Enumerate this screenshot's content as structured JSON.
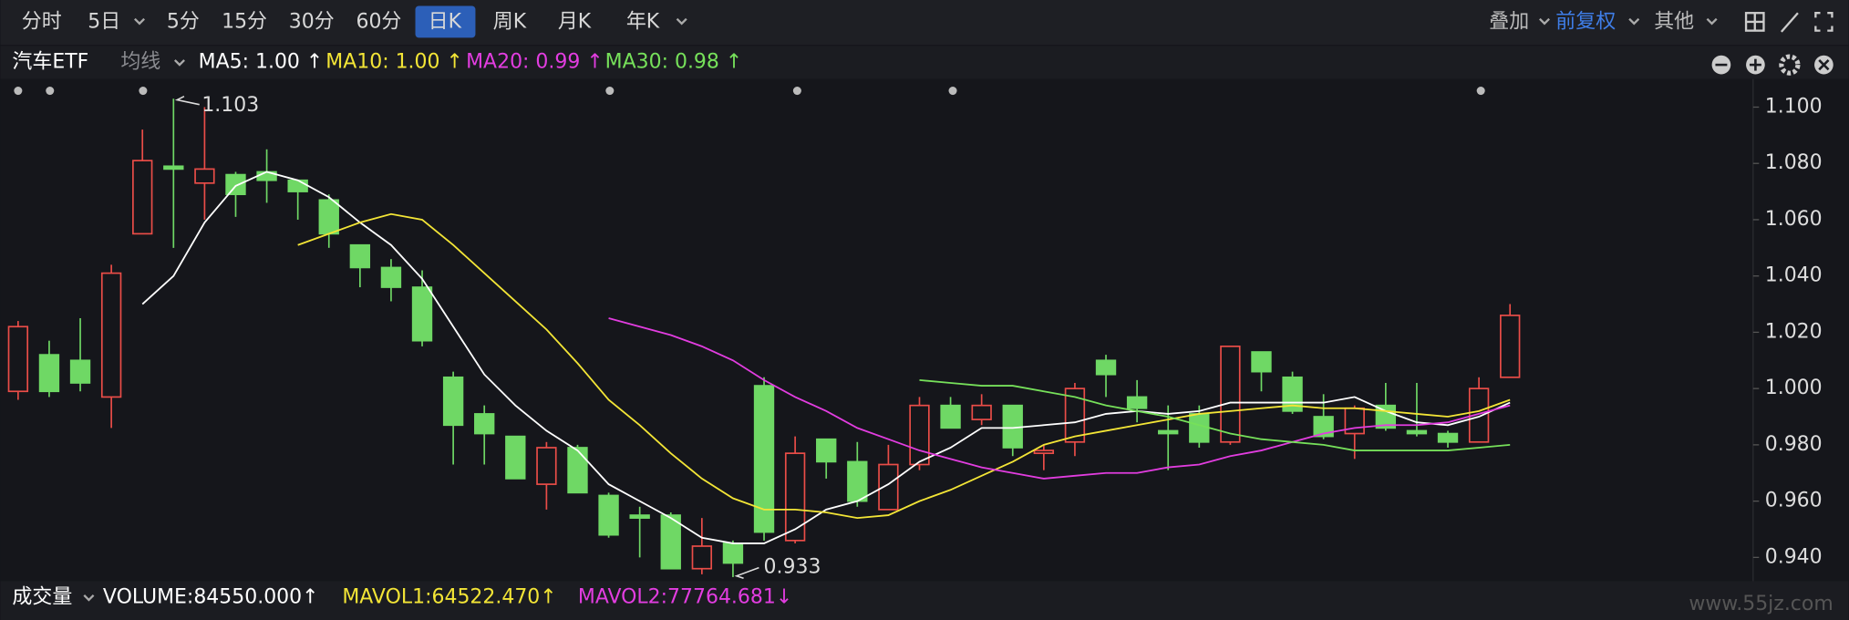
{
  "toolbar": {
    "tabs": [
      "分时",
      "5日",
      "5分",
      "15分",
      "30分",
      "60分",
      "日K",
      "周K",
      "月K",
      "年K"
    ],
    "right": [
      "叠加",
      "前复权",
      "其他"
    ]
  },
  "chart_data": {
    "type": "candlestick",
    "title": "汽车ETF",
    "indicator_menu": "均线",
    "up_color": "#ea4d48",
    "down_color": "#6fd865",
    "open": [
      0.999,
      1.012,
      1.01,
      0.997,
      1.055,
      1.079,
      1.073,
      1.076,
      1.077,
      1.074,
      1.067,
      1.051,
      1.043,
      1.036,
      1.004,
      0.991,
      0.983,
      0.966,
      0.979,
      0.962,
      0.955,
      0.955,
      0.936,
      0.945,
      1.001,
      0.946,
      0.982,
      0.974,
      0.957,
      0.973,
      0.994,
      0.989,
      0.994,
      0.977,
      0.981,
      1.01,
      0.997,
      0.985,
      0.991,
      0.981,
      1.013,
      1.004,
      0.99,
      0.984,
      0.994,
      0.985,
      0.984,
      0.981,
      1.004
    ],
    "high": [
      1.024,
      1.017,
      1.025,
      1.044,
      1.092,
      1.103,
      1.1,
      1.077,
      1.085,
      1.074,
      1.069,
      1.051,
      1.046,
      1.042,
      1.006,
      0.994,
      0.983,
      0.981,
      0.98,
      0.963,
      0.958,
      0.956,
      0.954,
      0.946,
      1.004,
      0.983,
      0.982,
      0.981,
      0.98,
      0.997,
      0.997,
      0.998,
      0.994,
      0.98,
      1.002,
      1.012,
      1.003,
      0.994,
      0.994,
      1.015,
      1.013,
      1.006,
      0.998,
      0.994,
      1.002,
      1.002,
      0.985,
      1.004,
      1.03
    ],
    "low": [
      0.996,
      0.997,
      0.999,
      0.986,
      1.055,
      1.05,
      1.06,
      1.061,
      1.066,
      1.06,
      1.05,
      1.036,
      1.031,
      1.015,
      0.973,
      0.973,
      0.968,
      0.957,
      0.963,
      0.947,
      0.94,
      0.936,
      0.934,
      0.933,
      0.946,
      0.945,
      0.968,
      0.958,
      0.957,
      0.971,
      0.986,
      0.987,
      0.976,
      0.971,
      0.976,
      0.997,
      0.988,
      0.971,
      0.979,
      0.98,
      0.999,
      0.991,
      0.982,
      0.975,
      0.985,
      0.983,
      0.979,
      0.981,
      1.004
    ],
    "close": [
      1.022,
      0.999,
      1.002,
      1.041,
      1.081,
      1.078,
      1.078,
      1.069,
      1.074,
      1.07,
      1.055,
      1.043,
      1.036,
      1.017,
      0.987,
      0.984,
      0.968,
      0.979,
      0.963,
      0.948,
      0.954,
      0.936,
      0.944,
      0.938,
      0.949,
      0.977,
      0.974,
      0.96,
      0.973,
      0.994,
      0.986,
      0.994,
      0.979,
      0.978,
      1.0,
      1.005,
      0.993,
      0.984,
      0.981,
      1.015,
      1.006,
      0.992,
      0.983,
      0.993,
      0.986,
      0.984,
      0.981,
      1.0,
      1.026
    ],
    "series": [
      {
        "name": "MA5: 1.00 ↑",
        "color": "#ffffff",
        "values": [
          null,
          null,
          null,
          null,
          1.03,
          1.04,
          1.059,
          1.072,
          1.077,
          1.074,
          1.068,
          1.059,
          1.051,
          1.039,
          1.022,
          1.005,
          0.994,
          0.985,
          0.978,
          0.966,
          0.96,
          0.954,
          0.947,
          0.945,
          0.945,
          0.95,
          0.957,
          0.96,
          0.966,
          0.974,
          0.979,
          0.986,
          0.986,
          0.987,
          0.988,
          0.991,
          0.992,
          0.991,
          0.992,
          0.995,
          0.995,
          0.995,
          0.995,
          0.997,
          0.992,
          0.988,
          0.987,
          0.99,
          0.995
        ]
      },
      {
        "name": "MA10: 1.00 ↑",
        "color": "#f3e536",
        "values": [
          null,
          null,
          null,
          null,
          null,
          null,
          null,
          null,
          null,
          1.051,
          1.055,
          1.059,
          1.062,
          1.06,
          1.051,
          1.041,
          1.031,
          1.021,
          1.009,
          0.996,
          0.987,
          0.977,
          0.968,
          0.961,
          0.957,
          0.957,
          0.956,
          0.954,
          0.955,
          0.96,
          0.964,
          0.969,
          0.974,
          0.98,
          0.983,
          0.985,
          0.987,
          0.989,
          0.991,
          0.992,
          0.993,
          0.994,
          0.993,
          0.993,
          0.992,
          0.991,
          0.99,
          0.992,
          0.996
        ]
      },
      {
        "name": "MA20: 0.99 ↑",
        "color": "#e23de0",
        "values": [
          null,
          null,
          null,
          null,
          null,
          null,
          null,
          null,
          null,
          null,
          null,
          null,
          null,
          null,
          null,
          null,
          null,
          null,
          null,
          1.025,
          1.022,
          1.019,
          1.015,
          1.01,
          1.003,
          0.997,
          0.992,
          0.986,
          0.982,
          0.978,
          0.975,
          0.972,
          0.97,
          0.968,
          0.969,
          0.97,
          0.97,
          0.972,
          0.973,
          0.976,
          0.978,
          0.981,
          0.984,
          0.986,
          0.987,
          0.987,
          0.988,
          0.991,
          0.994
        ]
      },
      {
        "name": "MA30: 0.98 ↑",
        "color": "#76e05a",
        "values": [
          null,
          null,
          null,
          null,
          null,
          null,
          null,
          null,
          null,
          null,
          null,
          null,
          null,
          null,
          null,
          null,
          null,
          null,
          null,
          null,
          null,
          null,
          null,
          null,
          null,
          null,
          null,
          null,
          null,
          1.003,
          1.002,
          1.001,
          1.001,
          0.999,
          0.997,
          0.994,
          0.992,
          0.99,
          0.987,
          0.984,
          0.982,
          0.981,
          0.98,
          0.978,
          0.978,
          0.978,
          0.978,
          0.979,
          0.98
        ]
      }
    ],
    "ylim": [
      0.932,
      1.11
    ],
    "yticks": [
      {
        "value": 0.94,
        "label": "0.940"
      },
      {
        "value": 0.96,
        "label": "0.960"
      },
      {
        "value": 0.98,
        "label": "0.980"
      },
      {
        "value": 1.0,
        "label": "1.000"
      },
      {
        "value": 1.02,
        "label": "1.020"
      },
      {
        "value": 1.04,
        "label": "1.040"
      },
      {
        "value": 1.06,
        "label": "1.060"
      },
      {
        "value": 1.08,
        "label": "1.080"
      },
      {
        "value": 1.1,
        "label": "1.100"
      }
    ]
  },
  "volume_panel": {
    "title": "成交量",
    "labels": [
      {
        "text": "VOLUME:84550.000↑",
        "color": "#ffffff"
      },
      {
        "text": "MAVOL1:64522.470↑",
        "color": "#f3e536"
      },
      {
        "text": "MAVOL2:77764.681↓",
        "color": "#e23de0"
      }
    ]
  },
  "watermark": "www.55jz.com"
}
